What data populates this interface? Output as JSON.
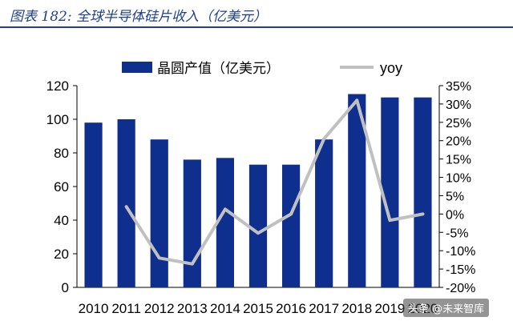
{
  "header": {
    "title": "图表 182:  全球半导体硅片收入（亿美元）"
  },
  "watermark": "头条 @未来智库",
  "colors": {
    "bar": "#0e2f8e",
    "line": "#c0c0c0",
    "title": "#1f3f8f"
  },
  "chart_data": {
    "type": "bar",
    "title": "",
    "xlabel": "",
    "ylabel": "",
    "categories": [
      "2010",
      "2011",
      "2012",
      "2013",
      "2014",
      "2015",
      "2016",
      "2017",
      "2018",
      "2019",
      "2020"
    ],
    "series": [
      {
        "name": "晶圆产值（亿美元）",
        "type": "bar",
        "axis": "left",
        "values": [
          98,
          100,
          88,
          76,
          77,
          73,
          73,
          88,
          115,
          113,
          113
        ]
      },
      {
        "name": "yoy",
        "type": "line",
        "axis": "right",
        "values": [
          null,
          2.0,
          -12.0,
          -13.6,
          1.3,
          -5.2,
          0.0,
          20.5,
          31.0,
          -1.7,
          0.0
        ]
      }
    ],
    "ylim": [
      0,
      120
    ],
    "yticks": [
      "0",
      "20",
      "40",
      "60",
      "80",
      "100",
      "120"
    ],
    "y2lim": [
      -20,
      35
    ],
    "y2ticks": [
      "-20%",
      "-15%",
      "-10%",
      "-5%",
      "0%",
      "5%",
      "10%",
      "15%",
      "20%",
      "25%",
      "30%",
      "35%"
    ],
    "grid": false,
    "legend": "top"
  }
}
